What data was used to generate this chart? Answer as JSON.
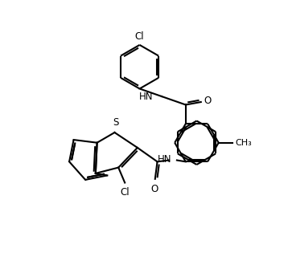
{
  "bg_color": "#ffffff",
  "line_color": "#000000",
  "line_width": 1.5,
  "font_size": 8.5,
  "fig_width": 3.58,
  "fig_height": 3.3,
  "dpi": 100,
  "xlim": [
    -0.5,
    9.0
  ],
  "ylim": [
    1.5,
    10.5
  ]
}
